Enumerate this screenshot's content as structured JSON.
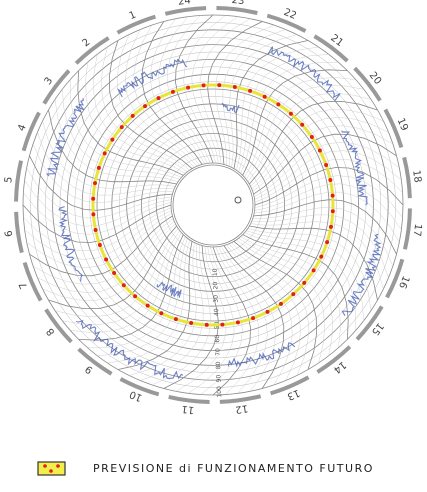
{
  "hours": [
    "1",
    "2",
    "3",
    "4",
    "5",
    "6",
    "7",
    "8",
    "9",
    "10",
    "11",
    "12",
    "13",
    "14",
    "15",
    "16",
    "17",
    "18",
    "19",
    "20",
    "21",
    "22",
    "23",
    "24"
  ],
  "scale_labels": [
    "10",
    "20",
    "30",
    "40",
    "50",
    "60",
    "70",
    "80",
    "90",
    "100"
  ],
  "legend": {
    "label": "PREVISIONE di FUNZIONAMENTO FUTURO"
  }
}
